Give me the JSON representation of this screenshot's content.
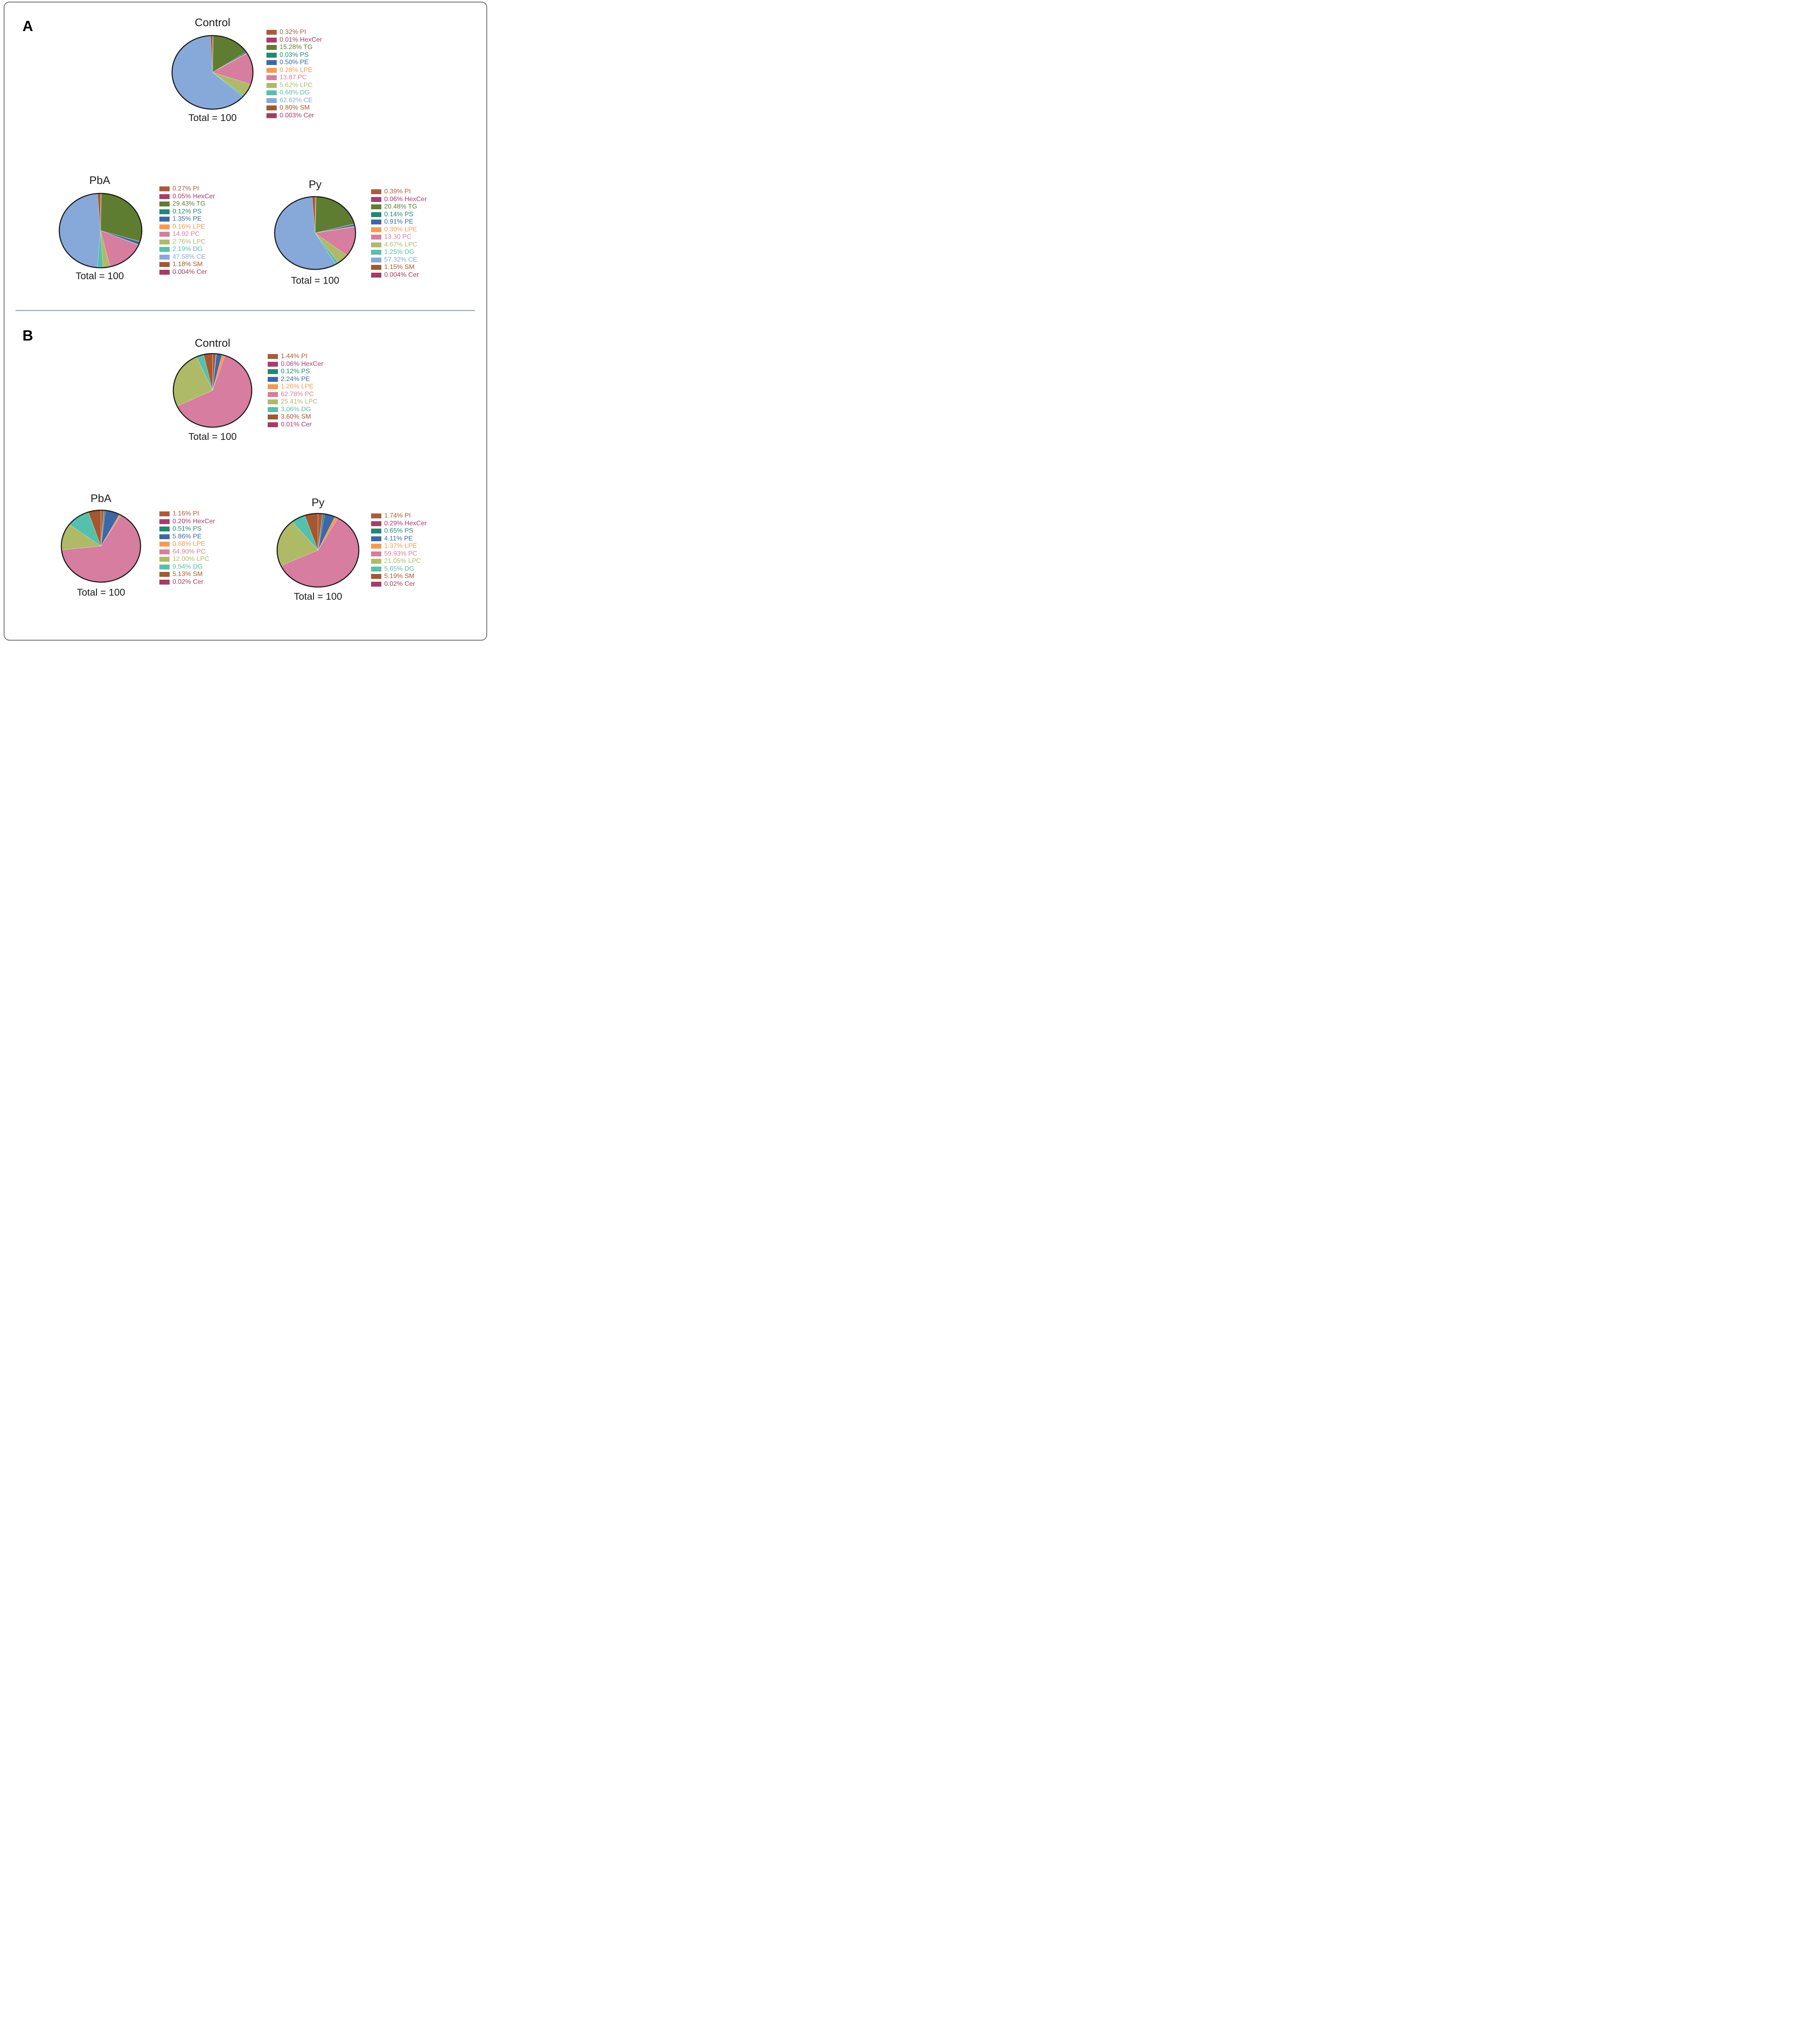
{
  "figure": {
    "panel_a_label": "A",
    "panel_b_label": "B",
    "frame_border_color": "#6b6e71",
    "divider_color": "#aab4bf"
  },
  "chart_data": [
    {
      "type": "pie",
      "panel": "A",
      "title": "Control",
      "total_note": "Total = 100",
      "legend_position": "right",
      "slices": [
        {
          "label": "PI",
          "value": 0.32,
          "legend_text": "0.32% PI",
          "color": "#AC5B3A"
        },
        {
          "label": "HexCer",
          "value": 0.01,
          "legend_text": "0.01% HexCer",
          "color": "#A93C6D"
        },
        {
          "label": "TG",
          "value": 15.28,
          "legend_text": "15.28% TG",
          "color": "#5E7D31"
        },
        {
          "label": "PS",
          "value": 0.03,
          "legend_text": "0.03% PS",
          "color": "#1F8972"
        },
        {
          "label": "PE",
          "value": 0.5,
          "legend_text": "0.50% PE",
          "color": "#3C68A7"
        },
        {
          "label": "LPE",
          "value": 0.28,
          "legend_text": "0.28% LPE",
          "color": "#F89A4A"
        },
        {
          "label": "PC",
          "value": 13.87,
          "legend_text": "13.87 PC",
          "color": "#D77D9F"
        },
        {
          "label": "LPC",
          "value": 5.62,
          "legend_text": "5.62% LPC",
          "color": "#AFBA66"
        },
        {
          "label": "DG",
          "value": 0.68,
          "legend_text": "0.68% DG",
          "color": "#55C0AB"
        },
        {
          "label": "CE",
          "value": 62.62,
          "legend_text": "62.62% CE",
          "color": "#86A9DA"
        },
        {
          "label": "SM",
          "value": 0.8,
          "legend_text": "0.80% SM",
          "color": "#A5572E"
        },
        {
          "label": "Cer",
          "value": 0.003,
          "legend_text": "0.003% Cer",
          "color": "#A73A64"
        }
      ]
    },
    {
      "type": "pie",
      "panel": "A",
      "title": "PbA",
      "total_note": "Total = 100",
      "legend_position": "right",
      "slices": [
        {
          "label": "PI",
          "value": 0.27,
          "legend_text": "0.27% PI",
          "color": "#AC5B3A"
        },
        {
          "label": "HexCer",
          "value": 0.05,
          "legend_text": "0.05% HexCer",
          "color": "#A93C6D"
        },
        {
          "label": "TG",
          "value": 29.43,
          "legend_text": "29.43% TG",
          "color": "#5E7D31"
        },
        {
          "label": "PS",
          "value": 0.12,
          "legend_text": "0.12% PS",
          "color": "#1F8972"
        },
        {
          "label": "PE",
          "value": 1.35,
          "legend_text": "1.35% PE",
          "color": "#3C68A7"
        },
        {
          "label": "LPE",
          "value": 0.16,
          "legend_text": "0.16% LPE",
          "color": "#F89A4A"
        },
        {
          "label": "PC",
          "value": 14.92,
          "legend_text": "14.92 PC",
          "color": "#D77D9F"
        },
        {
          "label": "LPC",
          "value": 2.76,
          "legend_text": "2.76% LPC",
          "color": "#AFBA66"
        },
        {
          "label": "DG",
          "value": 2.19,
          "legend_text": "2.19% DG",
          "color": "#55C0AB"
        },
        {
          "label": "CE",
          "value": 47.58,
          "legend_text": "47.58% CE",
          "color": "#86A9DA"
        },
        {
          "label": "SM",
          "value": 1.18,
          "legend_text": "1.18% SM",
          "color": "#A5572E"
        },
        {
          "label": "Cer",
          "value": 0.004,
          "legend_text": "0.004% Cer",
          "color": "#A73A64"
        }
      ]
    },
    {
      "type": "pie",
      "panel": "A",
      "title": "Py",
      "total_note": "Total = 100",
      "legend_position": "right",
      "slices": [
        {
          "label": "PI",
          "value": 0.39,
          "legend_text": "0.39% PI",
          "color": "#AC5B3A"
        },
        {
          "label": "HexCer",
          "value": 0.06,
          "legend_text": "0.06% HexCer",
          "color": "#A93C6D"
        },
        {
          "label": "TG",
          "value": 20.48,
          "legend_text": "20.48% TG",
          "color": "#5E7D31"
        },
        {
          "label": "PS",
          "value": 0.14,
          "legend_text": "0.14% PS",
          "color": "#1F8972"
        },
        {
          "label": "PE",
          "value": 0.91,
          "legend_text": "0.91% PE",
          "color": "#3C68A7"
        },
        {
          "label": "LPE",
          "value": 0.3,
          "legend_text": "0.30% LPE",
          "color": "#F89A4A"
        },
        {
          "label": "PC",
          "value": 13.3,
          "legend_text": "13.30 PC",
          "color": "#D77D9F"
        },
        {
          "label": "LPC",
          "value": 4.67,
          "legend_text": "4.67% LPC",
          "color": "#AFBA66"
        },
        {
          "label": "DG",
          "value": 1.25,
          "legend_text": "1.25% DG",
          "color": "#55C0AB"
        },
        {
          "label": "CE",
          "value": 57.32,
          "legend_text": "57.32% CE",
          "color": "#86A9DA"
        },
        {
          "label": "SM",
          "value": 1.15,
          "legend_text": "1.15% SM",
          "color": "#A5572E"
        },
        {
          "label": "Cer",
          "value": 0.004,
          "legend_text": "0.004% Cer",
          "color": "#A73A64"
        }
      ]
    },
    {
      "type": "pie",
      "panel": "B",
      "title": "Control",
      "total_note": "Total = 100",
      "legend_position": "right",
      "slices": [
        {
          "label": "PI",
          "value": 1.44,
          "legend_text": "1.44% PI",
          "color": "#AC5B3A"
        },
        {
          "label": "HexCer",
          "value": 0.06,
          "legend_text": "0.06% HexCer",
          "color": "#A93C6D"
        },
        {
          "label": "PS",
          "value": 0.12,
          "legend_text": "0.12% PS",
          "color": "#1F8972"
        },
        {
          "label": "PE",
          "value": 2.24,
          "legend_text": "2.24% PE",
          "color": "#3C68A7"
        },
        {
          "label": "LPE",
          "value": 1.26,
          "legend_text": "1.26% LPE",
          "color": "#F89A4A"
        },
        {
          "label": "PC",
          "value": 62.78,
          "legend_text": "62.78% PC",
          "color": "#D77D9F"
        },
        {
          "label": "LPC",
          "value": 25.41,
          "legend_text": "25.41% LPC",
          "color": "#AFBA66"
        },
        {
          "label": "DG",
          "value": 3.06,
          "legend_text": "3.06% DG",
          "color": "#55C0AB"
        },
        {
          "label": "SM",
          "value": 3.6,
          "legend_text": "3.60% SM",
          "color": "#A5572E"
        },
        {
          "label": "Cer",
          "value": 0.01,
          "legend_text": "0.01% Cer",
          "color": "#A73A64"
        }
      ]
    },
    {
      "type": "pie",
      "panel": "B",
      "title": "PbA",
      "total_note": "Total = 100",
      "legend_position": "right",
      "slices": [
        {
          "label": "PI",
          "value": 1.16,
          "legend_text": "1.16% PI",
          "color": "#AC5B3A"
        },
        {
          "label": "HexCer",
          "value": 0.2,
          "legend_text": "0.20% HexCer",
          "color": "#A93C6D"
        },
        {
          "label": "PS",
          "value": 0.51,
          "legend_text": "0.51% PS",
          "color": "#1F8972"
        },
        {
          "label": "PE",
          "value": 5.86,
          "legend_text": "5.86% PE",
          "color": "#3C68A7"
        },
        {
          "label": "LPE",
          "value": 0.68,
          "legend_text": "0.68% LPE",
          "color": "#F89A4A"
        },
        {
          "label": "PC",
          "value": 64.9,
          "legend_text": "64.90% PC",
          "color": "#D77D9F"
        },
        {
          "label": "LPC",
          "value": 12.0,
          "legend_text": "12.00% LPC",
          "color": "#AFBA66"
        },
        {
          "label": "DG",
          "value": 9.54,
          "legend_text": "9.54% DG",
          "color": "#55C0AB"
        },
        {
          "label": "SM",
          "value": 5.13,
          "legend_text": "5.13% SM",
          "color": "#A5572E"
        },
        {
          "label": "Cer",
          "value": 0.02,
          "legend_text": "0.02% Cer",
          "color": "#A73A64"
        }
      ]
    },
    {
      "type": "pie",
      "panel": "B",
      "title": "Py",
      "total_note": "Total = 100",
      "legend_position": "right",
      "slices": [
        {
          "label": "PI",
          "value": 1.74,
          "legend_text": "1.74% PI",
          "color": "#AC5B3A"
        },
        {
          "label": "HexCer",
          "value": 0.29,
          "legend_text": "0.29% HexCer",
          "color": "#A93C6D"
        },
        {
          "label": "PS",
          "value": 0.65,
          "legend_text": "0.65% PS",
          "color": "#1F8972"
        },
        {
          "label": "PE",
          "value": 4.11,
          "legend_text": "4.11% PE",
          "color": "#3C68A7"
        },
        {
          "label": "LPE",
          "value": 1.37,
          "legend_text": "1.37% LPE",
          "color": "#F89A4A"
        },
        {
          "label": "PC",
          "value": 59.93,
          "legend_text": "59.93% PC",
          "color": "#D77D9F"
        },
        {
          "label": "LPC",
          "value": 21.05,
          "legend_text": "21.05% LPC",
          "color": "#AFBA66"
        },
        {
          "label": "DG",
          "value": 5.65,
          "legend_text": "5.65% DG",
          "color": "#55C0AB"
        },
        {
          "label": "SM",
          "value": 5.19,
          "legend_text": "5.19% SM",
          "color": "#A5572E"
        },
        {
          "label": "Cer",
          "value": 0.02,
          "legend_text": "0.02% Cer",
          "color": "#A73A64"
        }
      ]
    }
  ]
}
